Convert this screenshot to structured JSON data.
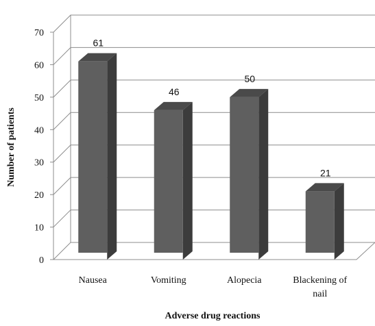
{
  "chart_data": {
    "type": "bar",
    "style": "3d-column",
    "categories": [
      "Nausea",
      "Vomiting",
      "Alopecia",
      "Blackening of nail"
    ],
    "category_lines": [
      [
        "Nausea"
      ],
      [
        "Vomiting"
      ],
      [
        "Alopecia"
      ],
      [
        "Blackening of",
        "nail"
      ]
    ],
    "values": [
      61,
      46,
      50,
      21
    ],
    "data_labels": [
      "61",
      "46",
      "50",
      "21"
    ],
    "xlabel": "Adverse drug reactions",
    "ylabel": "Number of patients",
    "ylim": [
      0,
      70
    ],
    "yticks": [
      0,
      10,
      20,
      30,
      40,
      50,
      60,
      70
    ],
    "grid": true,
    "legend": "none",
    "colors": {
      "bar_front": "#5f5f5f",
      "bar_side": "#3c3c3c",
      "bar_top": "#4a4a4a",
      "grid": "#8c8c8c",
      "axis": "#8c8c8c"
    }
  }
}
